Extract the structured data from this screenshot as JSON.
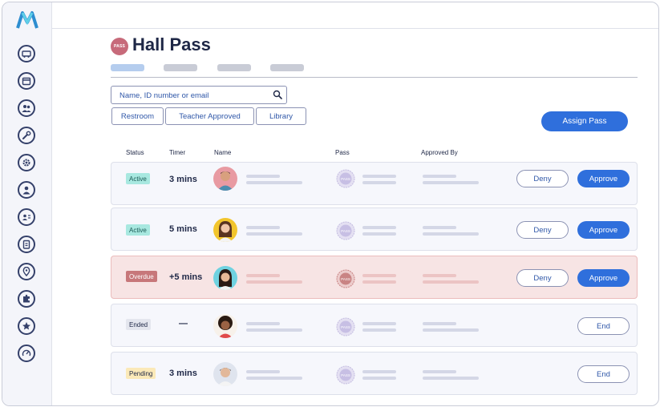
{
  "header": {
    "title": "Hall Pass",
    "badge": "PASS"
  },
  "search": {
    "placeholder": "Name, ID number or email"
  },
  "filters": [
    "Restroom",
    "Teacher Approved",
    "Library"
  ],
  "actions": {
    "assign": "Assign Pass"
  },
  "table": {
    "columns": [
      "Status",
      "Timer",
      "Name",
      "Pass",
      "Approved By"
    ],
    "rows": [
      {
        "status": "Active",
        "timer": "3 mins",
        "buttons": [
          "Deny",
          "Approve"
        ]
      },
      {
        "status": "Active",
        "timer": "5 mins",
        "buttons": [
          "Deny",
          "Approve"
        ]
      },
      {
        "status": "Overdue",
        "timer": "+5 mins",
        "buttons": [
          "Deny",
          "Approve"
        ]
      },
      {
        "status": "Ended",
        "timer": "—",
        "buttons": [
          "End"
        ]
      },
      {
        "status": "Pending",
        "timer": "3 mins",
        "buttons": [
          "End"
        ]
      }
    ]
  },
  "pass_icon_text": "PASS",
  "colors": {
    "accent": "#2f6fdc",
    "active": "#a8e8e0",
    "overdue": "#c7777a",
    "ended": "#e4e6ee",
    "pending": "#fbe9b8"
  },
  "sidebar": {
    "icons": [
      "bus-icon",
      "calendar-icon",
      "group-icon",
      "wrench-icon",
      "gear-icon",
      "person-icon",
      "id-card-icon",
      "clipboard-icon",
      "location-check-icon",
      "puzzle-icon",
      "star-icon",
      "speed-icon"
    ]
  }
}
